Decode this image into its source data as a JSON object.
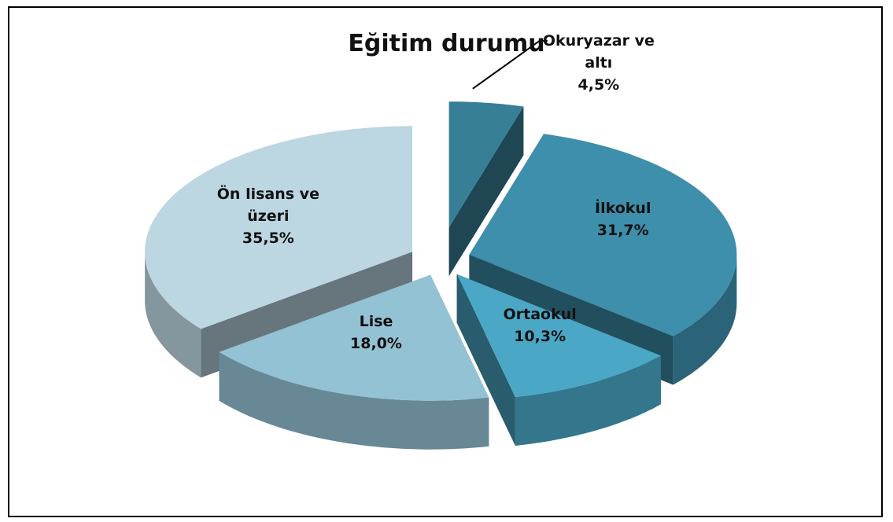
{
  "chart_data": {
    "type": "pie",
    "title": "Eğitim durumu",
    "categories": [
      "Okuryazar ve altı",
      "İlkokul",
      "Ortaokul",
      "Lise",
      "Ön lisans ve üzeri"
    ],
    "values": [
      4.5,
      31.7,
      10.3,
      18.0,
      35.5
    ],
    "value_labels": [
      "4,5%",
      "31,7%",
      "10,3%",
      "18,0%",
      "35,5%"
    ],
    "colors": [
      "#367f96",
      "#3d8fab",
      "#4aa8c6",
      "#93c2d4",
      "#bcd6e2"
    ]
  }
}
